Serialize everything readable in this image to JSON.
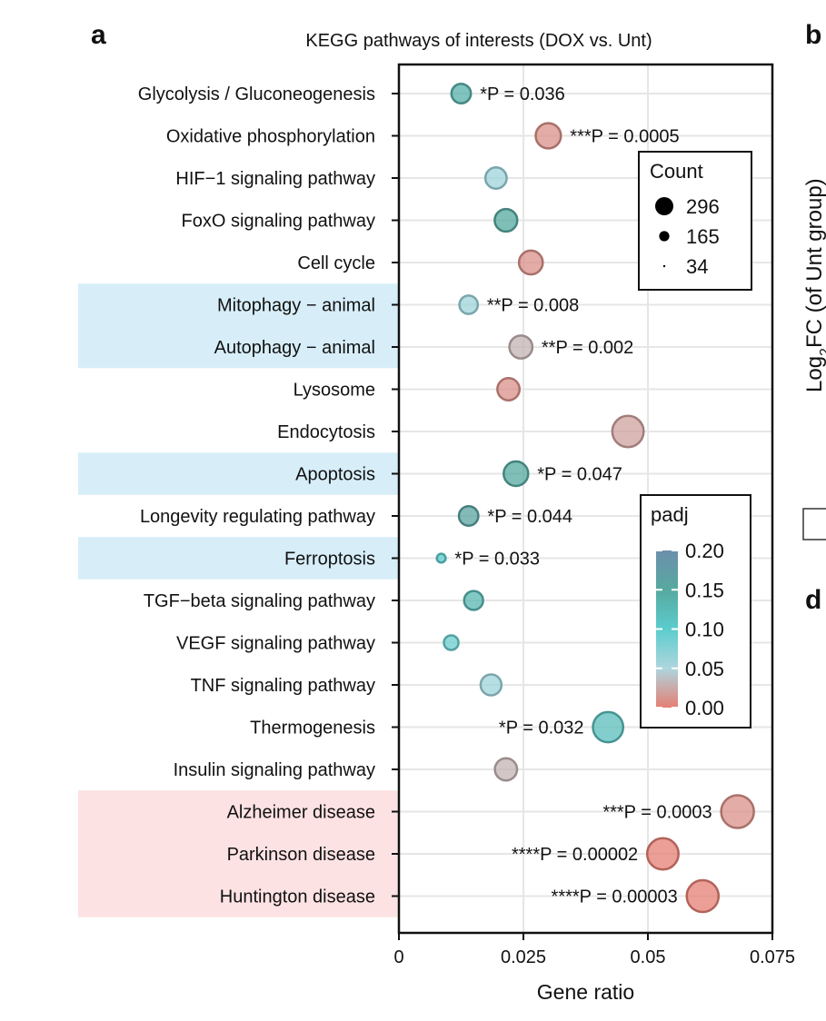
{
  "panels": {
    "a": "a",
    "b": "b",
    "d": "d"
  },
  "panel_b_ylabel": {
    "prefix": "Log",
    "sub": "2",
    "suffix": "FC (of Unt group)"
  },
  "chart_data": {
    "type": "scatter",
    "title": "KEGG pathways of interests (DOX vs. Unt)",
    "xlabel": "Gene ratio",
    "ylabel": "",
    "xlim": [
      0,
      0.075
    ],
    "xticks": [
      0,
      0.025,
      0.05,
      0.075
    ],
    "xtick_labels": [
      "0",
      "0.025",
      "0.05",
      "0.075"
    ],
    "grid": true,
    "categories": [
      "Glycolysis / Gluconeogenesis",
      "Oxidative phosphorylation",
      "HIF−1 signaling pathway",
      "FoxO signaling pathway",
      "Cell cycle",
      "Mitophagy − animal",
      "Autophagy − animal",
      "Lysosome",
      "Endocytosis",
      "Apoptosis",
      "Longevity regulating pathway",
      "Ferroptosis",
      "TGF−beta signaling pathway",
      "VEGF signaling pathway",
      "TNF signaling pathway",
      "Thermogenesis",
      "Insulin signaling pathway",
      "Alzheimer disease",
      "Parkinson disease",
      "Huntington disease"
    ],
    "highlights": [
      {
        "from": 5,
        "to": 6,
        "color": "#d7eef9"
      },
      {
        "from": 9,
        "to": 9,
        "color": "#d7eef9"
      },
      {
        "from": 11,
        "to": 11,
        "color": "#d7eef9"
      },
      {
        "from": 17,
        "to": 19,
        "color": "#fde2e4"
      }
    ],
    "points": [
      {
        "gene_ratio": 0.0125,
        "count": 100,
        "padj": 0.14,
        "annotation": "*P = 0.036",
        "annotation_side": "right"
      },
      {
        "gene_ratio": 0.03,
        "count": 170,
        "padj": 0.01,
        "annotation": "***P = 0.0005",
        "annotation_side": "right"
      },
      {
        "gene_ratio": 0.0195,
        "count": 120,
        "padj": 0.06,
        "annotation": "",
        "annotation_side": "right"
      },
      {
        "gene_ratio": 0.0215,
        "count": 135,
        "padj": 0.15,
        "annotation": "",
        "annotation_side": "right"
      },
      {
        "gene_ratio": 0.0265,
        "count": 150,
        "padj": 0.01,
        "annotation": "",
        "annotation_side": "right"
      },
      {
        "gene_ratio": 0.014,
        "count": 90,
        "padj": 0.06,
        "annotation": "**P = 0.008",
        "annotation_side": "right"
      },
      {
        "gene_ratio": 0.0245,
        "count": 140,
        "padj": 0.03,
        "annotation": "**P = 0.002",
        "annotation_side": "right"
      },
      {
        "gene_ratio": 0.022,
        "count": 130,
        "padj": 0.01,
        "annotation": "",
        "annotation_side": "right"
      },
      {
        "gene_ratio": 0.046,
        "count": 270,
        "padj": 0.02,
        "annotation": "",
        "annotation_side": "right"
      },
      {
        "gene_ratio": 0.0235,
        "count": 160,
        "padj": 0.15,
        "annotation": "*P = 0.047",
        "annotation_side": "right"
      },
      {
        "gene_ratio": 0.014,
        "count": 100,
        "padj": 0.16,
        "annotation": "*P = 0.044",
        "annotation_side": "right"
      },
      {
        "gene_ratio": 0.0085,
        "count": 34,
        "padj": 0.1,
        "annotation": "*P = 0.033",
        "annotation_side": "right"
      },
      {
        "gene_ratio": 0.015,
        "count": 95,
        "padj": 0.13,
        "annotation": "",
        "annotation_side": "right"
      },
      {
        "gene_ratio": 0.0105,
        "count": 60,
        "padj": 0.09,
        "annotation": "",
        "annotation_side": "right"
      },
      {
        "gene_ratio": 0.0185,
        "count": 115,
        "padj": 0.06,
        "annotation": "",
        "annotation_side": "right"
      },
      {
        "gene_ratio": 0.042,
        "count": 250,
        "padj": 0.12,
        "annotation": "*P = 0.032",
        "annotation_side": "left"
      },
      {
        "gene_ratio": 0.0215,
        "count": 130,
        "padj": 0.03,
        "annotation": "",
        "annotation_side": "right"
      },
      {
        "gene_ratio": 0.068,
        "count": 296,
        "padj": 0.01,
        "annotation": "***P = 0.0003",
        "annotation_side": "left"
      },
      {
        "gene_ratio": 0.053,
        "count": 270,
        "padj": 0.0,
        "annotation": "****P = 0.00002",
        "annotation_side": "left"
      },
      {
        "gene_ratio": 0.061,
        "count": 280,
        "padj": 0.0,
        "annotation": "****P = 0.00003",
        "annotation_side": "left"
      }
    ],
    "legend_count": {
      "title": "Count",
      "placement": "top-right",
      "entries": [
        {
          "label": "296",
          "value": 296
        },
        {
          "label": "165",
          "value": 165
        },
        {
          "label": "34",
          "value": 34
        }
      ]
    },
    "legend_padj": {
      "title": "padj",
      "placement": "right",
      "tick_labels": [
        "0.20",
        "0.15",
        "0.10",
        "0.05",
        "0.00"
      ],
      "range": [
        0.0,
        0.2
      ],
      "colors": {
        "high": "#6d8fac",
        "mid_high": "#56a9a0",
        "mid": "#5ccccd",
        "mid_low": "#aed6de",
        "low": "#e57f73"
      }
    }
  }
}
